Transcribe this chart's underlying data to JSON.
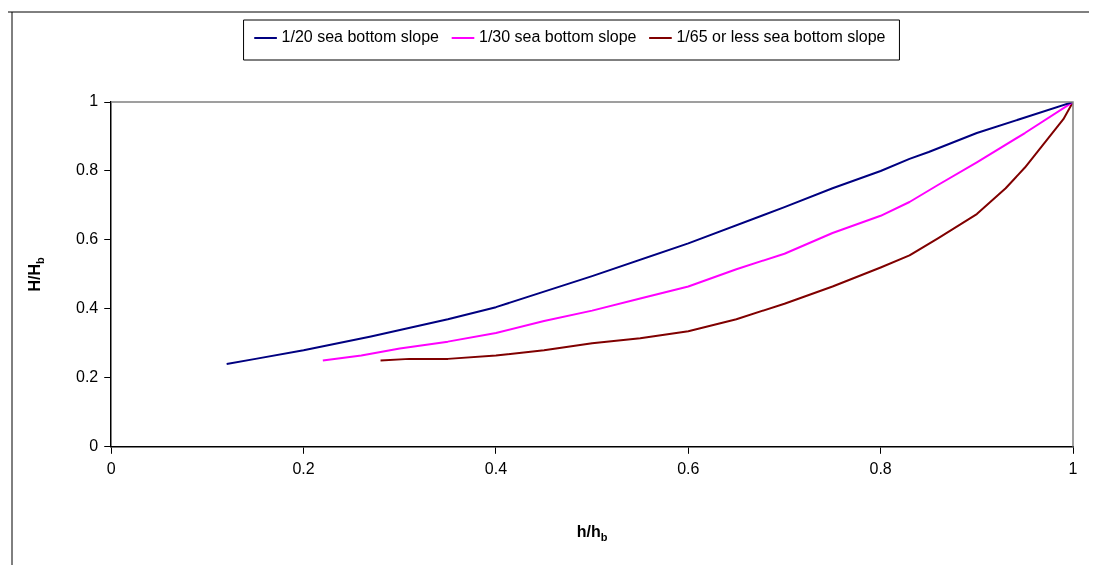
{
  "chart_data": {
    "type": "line",
    "xlabel": "h/h$_{b}$",
    "ylabel": "H/H$_{b}$",
    "xlim": [
      0,
      1
    ],
    "ylim": [
      0,
      1
    ],
    "xticks": [
      0,
      0.2,
      0.4,
      0.6,
      0.8,
      1
    ],
    "yticks": [
      0,
      0.2,
      0.4,
      0.6,
      0.8,
      1
    ],
    "grid": false,
    "legend": "top",
    "marker": "none",
    "line_style": "solid",
    "series": [
      {
        "name": "1/20 sea bottom slope",
        "color": "#000080",
        "x": [
          0.12,
          0.15,
          0.2,
          0.27,
          0.35,
          0.4,
          0.45,
          0.5,
          0.6,
          0.7,
          0.75,
          0.8,
          0.83,
          0.85,
          0.9,
          0.95,
          1
        ],
        "values": [
          0.24,
          0.255,
          0.28,
          0.32,
          0.37,
          0.405,
          0.45,
          0.495,
          0.59,
          0.695,
          0.75,
          0.8,
          0.835,
          0.855,
          0.91,
          0.955,
          1
        ]
      },
      {
        "name": "1/30 sea bottom slope",
        "color": "#ff00ff",
        "x": [
          0.22,
          0.26,
          0.3,
          0.35,
          0.4,
          0.45,
          0.5,
          0.55,
          0.6,
          0.65,
          0.7,
          0.75,
          0.8,
          0.83,
          0.86,
          0.9,
          0.95,
          1
        ],
        "values": [
          0.25,
          0.265,
          0.285,
          0.305,
          0.33,
          0.365,
          0.395,
          0.43,
          0.465,
          0.515,
          0.56,
          0.62,
          0.67,
          0.71,
          0.76,
          0.825,
          0.91,
          1
        ]
      },
      {
        "name": "1/65 or less sea bottom slope",
        "color": "#800000",
        "x": [
          0.28,
          0.31,
          0.35,
          0.4,
          0.45,
          0.5,
          0.55,
          0.6,
          0.65,
          0.7,
          0.75,
          0.8,
          0.83,
          0.86,
          0.9,
          0.93,
          0.95,
          0.97,
          0.99,
          1
        ],
        "values": [
          0.25,
          0.255,
          0.255,
          0.265,
          0.28,
          0.3,
          0.315,
          0.335,
          0.37,
          0.415,
          0.465,
          0.52,
          0.555,
          0.605,
          0.675,
          0.75,
          0.81,
          0.88,
          0.95,
          1
        ]
      }
    ]
  }
}
